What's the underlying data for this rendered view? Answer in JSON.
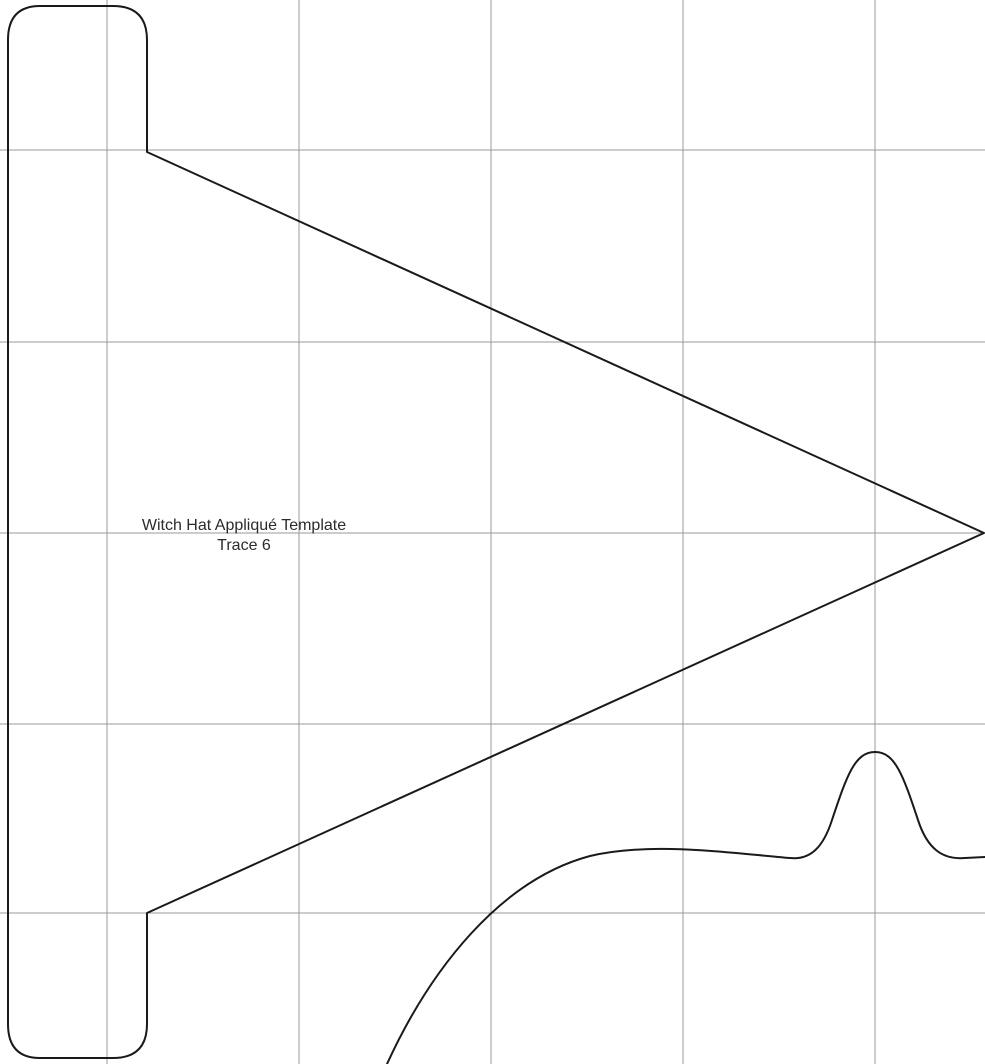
{
  "template": {
    "title": "Witch Hat Appliqué Template",
    "subtitle": "Trace 6"
  },
  "colors": {
    "grid": "#9a9a9a",
    "outline": "#1a1a1a",
    "text": "#2b2b2b",
    "background": "#ffffff"
  }
}
